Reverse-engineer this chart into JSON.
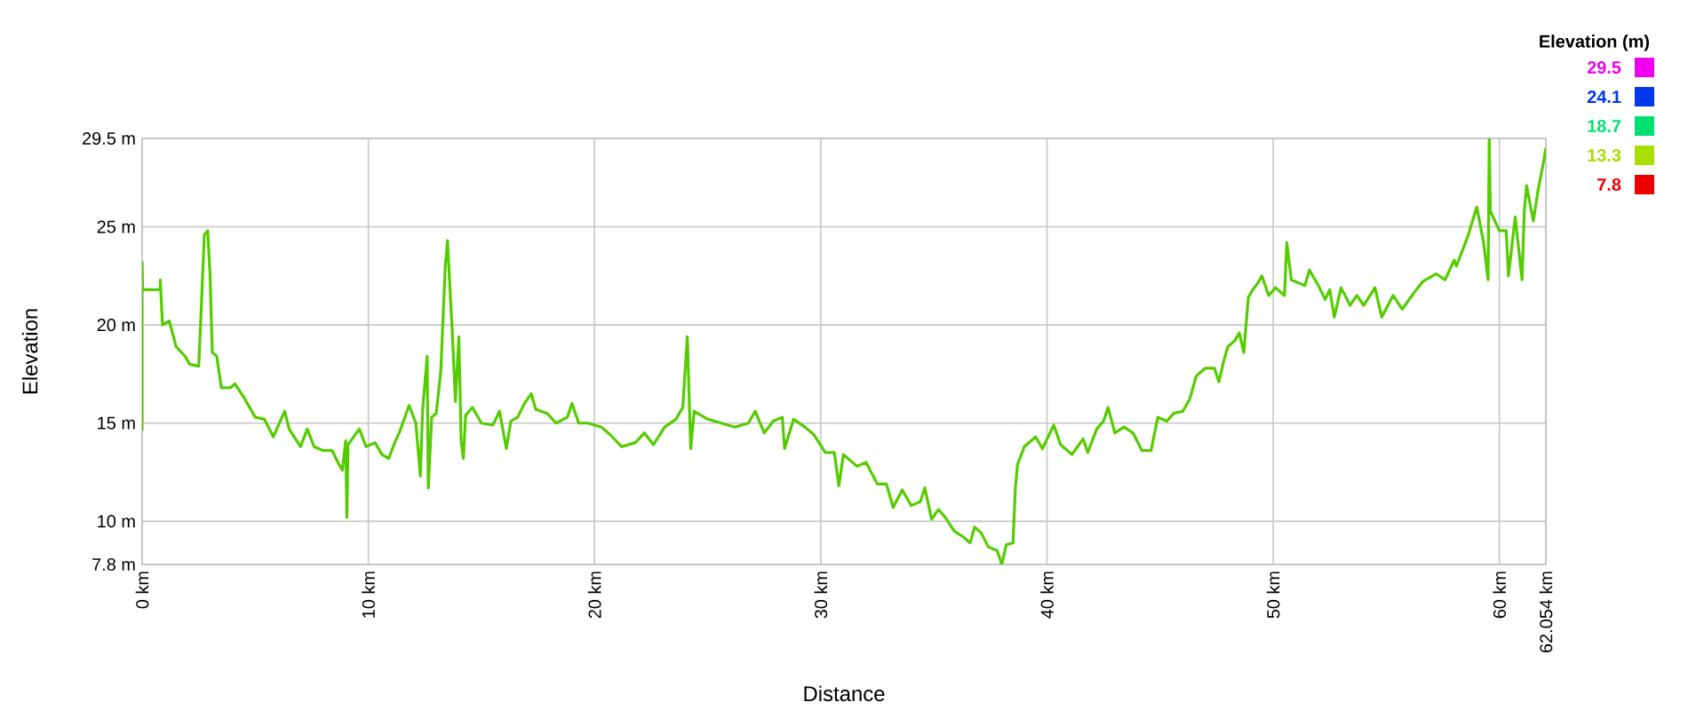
{
  "chart_data": {
    "type": "line",
    "xlabel": "Distance",
    "ylabel": "Elevation",
    "clabel": "Elevation (m)",
    "xlim": [
      0,
      62.054
    ],
    "ylim": [
      7.8,
      29.5
    ],
    "xticks": [
      {
        "value": 0,
        "label": "0 km"
      },
      {
        "value": 10,
        "label": "10 km"
      },
      {
        "value": 20,
        "label": "20 km"
      },
      {
        "value": 30,
        "label": "30 km"
      },
      {
        "value": 40,
        "label": "40 km"
      },
      {
        "value": 50,
        "label": "50 km"
      },
      {
        "value": 60,
        "label": "60 km"
      },
      {
        "value": 62.054,
        "label": "62.054 km"
      }
    ],
    "yticks": [
      {
        "value": 7.8,
        "label": "7.8 m"
      },
      {
        "value": 10,
        "label": "10 m"
      },
      {
        "value": 15,
        "label": "15 m"
      },
      {
        "value": 20,
        "label": "20 m"
      },
      {
        "value": 25,
        "label": "25 m"
      },
      {
        "value": 29.5,
        "label": "29.5 m"
      }
    ],
    "grid": true,
    "annotations": [
      "29.5",
      "24.1",
      "18.7",
      "13.3",
      "7.8"
    ],
    "color": "#55cc00",
    "x": [
      0,
      0,
      0.02,
      0.8,
      0.8,
      0.9,
      1.2,
      1.5,
      1.9,
      2.1,
      2.5,
      2.6,
      2.75,
      2.9,
      3.0,
      3.1,
      3.3,
      3.5,
      3.9,
      4.1,
      4.5,
      4.7,
      5.0,
      5.4,
      5.8,
      6.3,
      6.5,
      7.0,
      7.3,
      7.6,
      8.0,
      8.4,
      8.7,
      8.85,
      9.0,
      9.05,
      9.1,
      9.6,
      9.9,
      10.3,
      10.6,
      10.9,
      11.2,
      11.4,
      11.8,
      12.1,
      12.3,
      12.4,
      12.6,
      12.65,
      12.8,
      13.0,
      13.2,
      13.4,
      13.5,
      13.65,
      13.7,
      13.85,
      14.0,
      14.1,
      14.2,
      14.3,
      14.6,
      15.0,
      15.5,
      15.8,
      16.1,
      16.3,
      16.6,
      16.9,
      17.2,
      17.4,
      17.9,
      18.3,
      18.8,
      19.0,
      19.3,
      19.7,
      20.0,
      20.3,
      20.7,
      21.2,
      21.8,
      22.2,
      22.6,
      23.1,
      23.6,
      23.9,
      24.1,
      24.2,
      24.25,
      24.4,
      25.0,
      25.6,
      26.2,
      26.8,
      27.1,
      27.5,
      27.9,
      28.3,
      28.4,
      28.8,
      29.3,
      29.7,
      30.2,
      30.6,
      30.8,
      31.0,
      31.6,
      32.0,
      32.5,
      32.9,
      33.2,
      33.6,
      34.0,
      34.4,
      34.6,
      34.9,
      35.2,
      35.5,
      35.9,
      36.3,
      36.6,
      36.8,
      37.1,
      37.4,
      37.8,
      38.0,
      38.2,
      38.5,
      38.6,
      38.7,
      39.0,
      39.5,
      39.8,
      40.3,
      40.6,
      41.1,
      41.6,
      41.8,
      42.2,
      42.5,
      42.7,
      43.0,
      43.4,
      43.8,
      44.2,
      44.6,
      44.9,
      45.3,
      45.6,
      46.0,
      46.3,
      46.6,
      47.0,
      47.4,
      47.6,
      47.8,
      48.0,
      48.3,
      48.5,
      48.7,
      48.8,
      48.9,
      49.1,
      49.3,
      49.5,
      49.8,
      50.1,
      50.5,
      50.6,
      50.8,
      51.4,
      51.6,
      52.0,
      52.3,
      52.5,
      52.7,
      53.0,
      53.4,
      53.7,
      54.0,
      54.5,
      54.8,
      55.3,
      55.7,
      56.2,
      56.6,
      57.2,
      57.6,
      58.0,
      58.1,
      58.6,
      59.0,
      59.3,
      59.5,
      59.55,
      59.6,
      60.0,
      60.3,
      60.4,
      60.7,
      61.0,
      61.1,
      61.2,
      61.5,
      61.7,
      61.9,
      62.054
    ],
    "values": [
      14.6,
      23.2,
      21.8,
      21.8,
      22.3,
      20.0,
      20.2,
      18.9,
      18.4,
      18.0,
      17.9,
      20.5,
      24.6,
      24.8,
      22.6,
      18.6,
      18.4,
      16.8,
      16.8,
      17.0,
      16.3,
      15.9,
      15.3,
      15.2,
      14.3,
      15.6,
      14.7,
      13.8,
      14.7,
      13.8,
      13.6,
      13.6,
      12.9,
      12.6,
      14.1,
      10.2,
      13.9,
      14.7,
      13.8,
      14.0,
      13.4,
      13.2,
      14.1,
      14.6,
      15.9,
      15.0,
      12.3,
      15.7,
      18.4,
      11.7,
      15.3,
      15.5,
      17.6,
      23.0,
      24.3,
      20.9,
      19.9,
      16.1,
      19.4,
      14.1,
      13.2,
      15.4,
      15.8,
      15.0,
      14.9,
      15.6,
      13.7,
      15.1,
      15.3,
      16.0,
      16.5,
      15.7,
      15.5,
      15.0,
      15.3,
      16.0,
      15.0,
      15.0,
      14.9,
      14.8,
      14.4,
      13.8,
      14.0,
      14.5,
      13.9,
      14.8,
      15.2,
      15.8,
      19.4,
      15.6,
      13.7,
      15.6,
      15.2,
      15.0,
      14.8,
      15.0,
      15.6,
      14.5,
      15.1,
      15.3,
      13.7,
      15.2,
      14.8,
      14.4,
      13.5,
      13.5,
      11.8,
      13.4,
      12.8,
      13.0,
      11.9,
      11.9,
      10.7,
      11.6,
      10.8,
      11.0,
      11.7,
      10.1,
      10.6,
      10.2,
      9.5,
      9.2,
      8.9,
      9.7,
      9.4,
      8.7,
      8.5,
      7.8,
      8.8,
      8.9,
      11.7,
      12.9,
      13.8,
      14.3,
      13.7,
      14.9,
      13.9,
      13.4,
      14.2,
      13.5,
      14.7,
      15.1,
      15.8,
      14.5,
      14.8,
      14.5,
      13.6,
      13.6,
      15.3,
      15.1,
      15.5,
      15.6,
      16.2,
      17.4,
      17.8,
      17.8,
      17.1,
      18.1,
      18.9,
      19.2,
      19.6,
      18.6,
      20.0,
      21.4,
      21.8,
      22.1,
      22.5,
      21.5,
      21.9,
      21.5,
      24.2,
      22.3,
      22.0,
      22.8,
      22.0,
      21.3,
      21.8,
      20.4,
      21.9,
      21.0,
      21.5,
      21.0,
      21.9,
      20.4,
      21.5,
      20.8,
      21.6,
      22.2,
      22.6,
      22.3,
      23.3,
      23.0,
      24.5,
      26.0,
      24.2,
      22.3,
      29.5,
      25.8,
      24.8,
      24.8,
      22.5,
      25.5,
      22.3,
      25.8,
      27.1,
      25.3,
      26.8,
      28.0,
      29.0
    ]
  }
}
